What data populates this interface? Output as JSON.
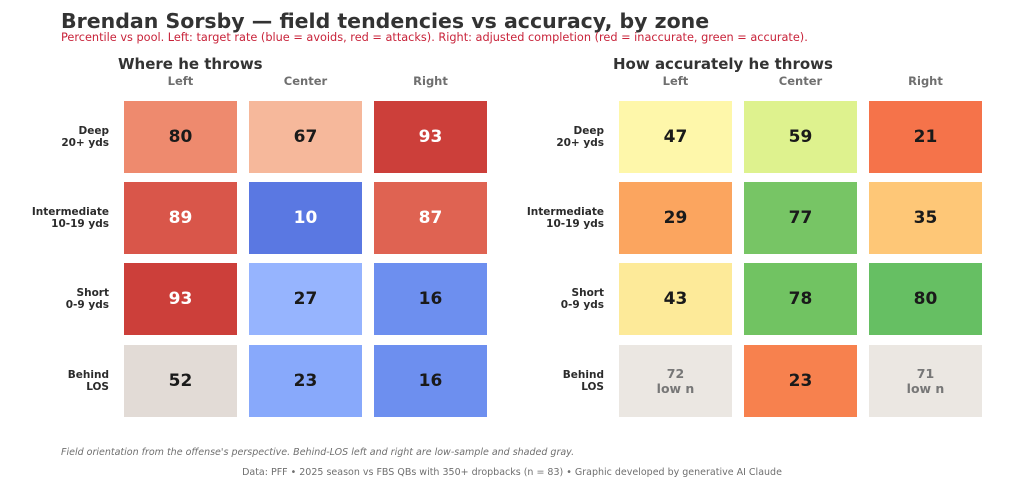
{
  "header": {
    "title": "Brendan Sorsby  —  field tendencies vs accuracy, by zone",
    "subtitle": "Percentile vs pool. Left: target rate (blue = avoids, red = attacks).  Right: adjusted completion (red = inaccurate, green = accurate)."
  },
  "chart_data": [
    {
      "type": "heatmap",
      "title": "Where he throws",
      "columns": [
        "Left",
        "Center",
        "Right"
      ],
      "rows": [
        "Deep\n20+ yds",
        "Intermediate\n10-19 yds",
        "Short\n0-9 yds",
        "Behind\nLOS"
      ],
      "values": [
        [
          80,
          67,
          93
        ],
        [
          89,
          10,
          87
        ],
        [
          93,
          27,
          16
        ],
        [
          52,
          23,
          16
        ]
      ],
      "cell_text": [
        [
          "80",
          "67",
          "93"
        ],
        [
          "89",
          "10",
          "87"
        ],
        [
          "93",
          "27",
          "16"
        ],
        [
          "52",
          "23",
          "16"
        ]
      ],
      "colors": [
        [
          "#ee8a6e",
          "#f6b89b",
          "#cc3f3a"
        ],
        [
          "#d9564a",
          "#5a78e2",
          "#df6352"
        ],
        [
          "#cc3f3a",
          "#96b4fe",
          "#6d8fef"
        ],
        [
          "#e2dbd6",
          "#88a9fb",
          "#6d8fef"
        ]
      ],
      "text_colors": [
        [
          "#1a1a1a",
          "#1a1a1a",
          "#ffffff"
        ],
        [
          "#ffffff",
          "#ffffff",
          "#ffffff"
        ],
        [
          "#ffffff",
          "#1a1a1a",
          "#1a1a1a"
        ],
        [
          "#1a1a1a",
          "#1a1a1a",
          "#1a1a1a"
        ]
      ],
      "color_legend": "blue = avoids, red = attacks"
    },
    {
      "type": "heatmap",
      "title": "How accurately he throws",
      "columns": [
        "Left",
        "Center",
        "Right"
      ],
      "rows": [
        "Deep\n20+ yds",
        "Intermediate\n10-19 yds",
        "Short\n0-9 yds",
        "Behind\nLOS"
      ],
      "values": [
        [
          47,
          59,
          21
        ],
        [
          29,
          77,
          35
        ],
        [
          43,
          78,
          80
        ],
        [
          72,
          23,
          71
        ]
      ],
      "cell_text": [
        [
          "47",
          "59",
          "21"
        ],
        [
          "29",
          "77",
          "35"
        ],
        [
          "43",
          "78",
          "80"
        ],
        [
          "72\nlow n",
          "23",
          "71\nlow n"
        ]
      ],
      "colors": [
        [
          "#fef7aa",
          "#def28e",
          "#f5734a"
        ],
        [
          "#fba55f",
          "#77c565",
          "#fec777"
        ],
        [
          "#fdea99",
          "#71c362",
          "#66bf63"
        ],
        [
          "#ebe7e2",
          "#f7814e",
          "#ebe7e2"
        ]
      ],
      "text_colors": [
        [
          "#1a1a1a",
          "#1a1a1a",
          "#1a1a1a"
        ],
        [
          "#1a1a1a",
          "#1a1a1a",
          "#1a1a1a"
        ],
        [
          "#1a1a1a",
          "#1a1a1a",
          "#1a1a1a"
        ],
        [
          "#777777",
          "#1a1a1a",
          "#777777"
        ]
      ],
      "color_legend": "red = inaccurate, green = accurate"
    }
  ],
  "footer": {
    "note": "Field orientation from the offense's perspective. Behind-LOS left and right are low-sample and shaded gray.",
    "source": "Data: PFF  •  2025 season vs FBS QBs with 350+ dropbacks (n = 83)  •  Graphic developed by generative AI Claude"
  }
}
